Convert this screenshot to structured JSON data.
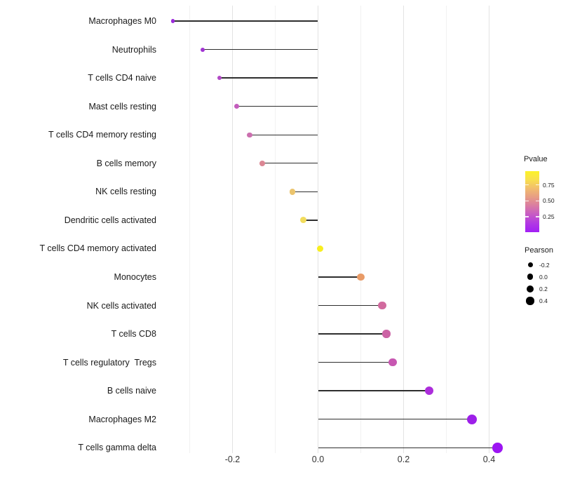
{
  "chart_data": {
    "type": "scatter",
    "variant": "lollipop",
    "title": "",
    "xlabel": "",
    "ylabel": "",
    "grid": "vertical-only",
    "legend_position": "right",
    "baseline_x": 0.0,
    "x_axis": {
      "range": [
        -0.37,
        0.46
      ],
      "major_ticks": [
        {
          "value": -0.2,
          "label": "-0.2"
        },
        {
          "value": 0.0,
          "label": "0.0"
        },
        {
          "value": 0.2,
          "label": "0.2"
        },
        {
          "value": 0.4,
          "label": "0.4"
        }
      ],
      "minor_ticks": [
        -0.3,
        -0.1,
        0.1,
        0.3
      ]
    },
    "points": [
      {
        "label": "Macrophages M0",
        "pearson": -0.34,
        "pvalue": 0.02,
        "color": "#9B2ADB"
      },
      {
        "label": "Neutrophils",
        "pearson": -0.27,
        "pvalue": 0.08,
        "color": "#A134D3"
      },
      {
        "label": "T cells CD4 naive",
        "pearson": -0.23,
        "pvalue": 0.16,
        "color": "#B248C6"
      },
      {
        "label": "Mast cells resting",
        "pearson": -0.19,
        "pvalue": 0.24,
        "color": "#C45DBD"
      },
      {
        "label": "T cells CD4 memory resting",
        "pearson": -0.16,
        "pvalue": 0.32,
        "color": "#CB6FAF"
      },
      {
        "label": "B cells memory",
        "pearson": -0.13,
        "pvalue": 0.44,
        "color": "#DB8794"
      },
      {
        "label": "NK cells resting",
        "pearson": -0.06,
        "pvalue": 0.72,
        "color": "#EBC46D"
      },
      {
        "label": "Dendritic cells activated",
        "pearson": -0.035,
        "pvalue": 0.82,
        "color": "#F2DC5C"
      },
      {
        "label": "T cells CD4 memory activated",
        "pearson": 0.005,
        "pvalue": 0.95,
        "color": "#F8EE1F"
      },
      {
        "label": "Monocytes",
        "pearson": 0.1,
        "pvalue": 0.55,
        "color": "#E99B67"
      },
      {
        "label": "NK cells activated",
        "pearson": 0.15,
        "pvalue": 0.36,
        "color": "#D16A9E"
      },
      {
        "label": "T cells CD8",
        "pearson": 0.16,
        "pvalue": 0.33,
        "color": "#CC63A5"
      },
      {
        "label": "T cells regulatory  Tregs",
        "pearson": 0.175,
        "pvalue": 0.27,
        "color": "#C757B1"
      },
      {
        "label": "B cells naive",
        "pearson": 0.26,
        "pvalue": 0.1,
        "color": "#AC2DDB"
      },
      {
        "label": "Macrophages M2",
        "pearson": 0.36,
        "pvalue": 0.03,
        "color": "#9D1FE9"
      },
      {
        "label": "T cells gamma delta",
        "pearson": 0.42,
        "pvalue": 0.02,
        "color": "#9C15F2"
      }
    ],
    "legends": {
      "pvalue": {
        "title": "Pvalue",
        "tick_labels": [
          "0.75",
          "0.50",
          "0.25"
        ],
        "gradient_top_to_bottom": [
          "#FCF328",
          "#F8DF4E",
          "#F1BC6E",
          "#E79C85",
          "#D97BA4",
          "#C65AC6",
          "#B138E4",
          "#A21FF5"
        ]
      },
      "pearson": {
        "title": "Pearson",
        "entries": [
          {
            "label": "-0.2",
            "size": 7
          },
          {
            "label": "0.0",
            "size": 8.7
          },
          {
            "label": "0.2",
            "size": 10
          },
          {
            "label": "0.4",
            "size": 11.3
          }
        ]
      }
    }
  }
}
